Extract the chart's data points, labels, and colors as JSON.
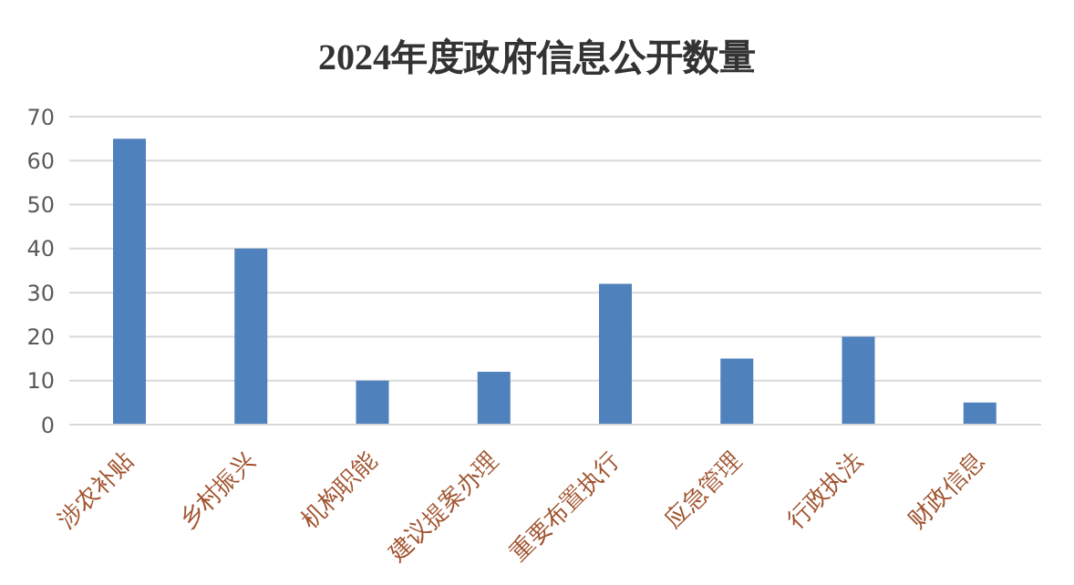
{
  "chart_data": {
    "type": "bar",
    "title": "2024年度政府信息公开数量",
    "categories": [
      "涉农补贴",
      "乡村振兴",
      "机构职能",
      "建议提案办理",
      "重要布置执行",
      "应急管理",
      "行政执法",
      "财政信息"
    ],
    "values": [
      65,
      40,
      10,
      12,
      32,
      15,
      20,
      5
    ],
    "color": "#4f81bd",
    "ylim": [
      0,
      70
    ],
    "yticks": [
      0,
      10,
      20,
      30,
      40,
      50,
      60,
      70
    ],
    "grid": "y"
  }
}
